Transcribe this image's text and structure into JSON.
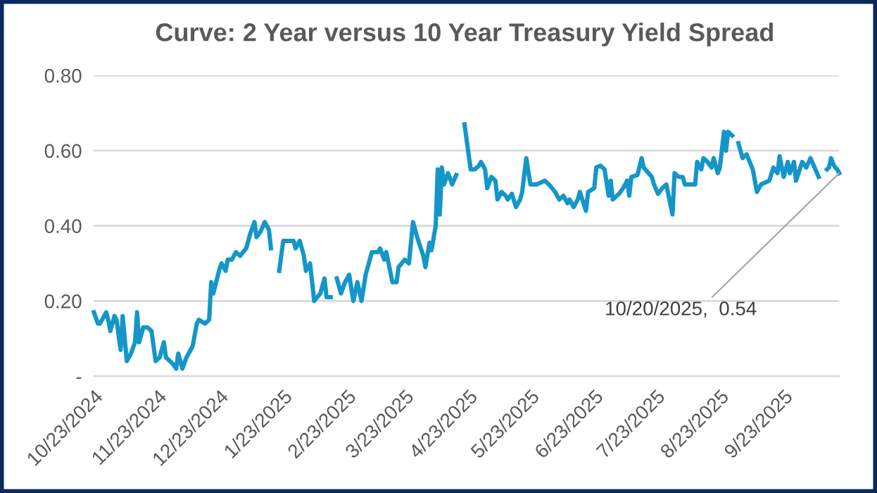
{
  "chart_data": {
    "type": "line",
    "title": "Curve: 2 Year versus 10 Year Treasury Yield Spread",
    "series": [
      {
        "color": "#1596c8",
        "x": [
          "2024-10-23",
          "2024-10-25",
          "2024-10-26",
          "2024-10-29",
          "2024-10-30",
          "2024-10-31",
          "2024-11-02",
          "2024-11-03",
          "2024-11-05",
          "2024-11-06",
          "2024-11-08",
          "2024-11-10",
          "2024-11-12",
          "2024-11-13",
          "2024-11-14",
          "2024-11-16",
          "2024-11-18",
          "2024-11-20",
          "2024-11-22",
          "2024-11-24",
          "2024-11-26",
          "2024-11-27",
          "2024-11-30",
          "2024-12-02",
          "2024-12-03",
          "2024-12-05",
          "2024-12-07",
          "2024-12-09",
          "2024-12-10",
          "2024-12-12",
          "2024-12-13",
          "2024-12-16",
          "2024-12-18",
          "2024-12-19",
          "2024-12-20",
          "2024-12-23",
          "2024-12-24",
          "2024-12-26",
          "2024-12-27",
          "2024-12-29",
          "2024-12-31",
          "2025-01-02",
          "2025-01-05",
          "2025-01-07",
          "2025-01-09",
          "2025-01-10",
          "2025-01-12",
          "2025-01-14",
          "2025-01-16",
          "2025-01-17",
          "2025-01-19",
          "2025-01-21",
          "2025-01-23",
          "2025-01-28",
          "2025-01-29",
          "2025-01-31",
          "2025-02-02",
          "2025-02-03",
          "2025-02-05",
          "2025-02-07",
          "2025-02-10",
          "2025-02-12",
          "2025-02-13",
          "2025-02-15",
          "2025-02-17",
          "2025-02-18",
          "2025-02-20",
          "2025-02-22",
          "2025-02-24",
          "2025-02-26",
          "2025-02-28",
          "2025-03-02",
          "2025-03-04",
          "2025-03-07",
          "2025-03-10",
          "2025-03-11",
          "2025-03-13",
          "2025-03-14",
          "2025-03-17",
          "2025-03-19",
          "2025-03-20",
          "2025-03-23",
          "2025-03-25",
          "2025-03-27",
          "2025-03-29",
          "2025-04-01",
          "2025-04-02",
          "2025-04-04",
          "2025-04-05",
          "2025-04-07",
          "2025-04-08",
          "2025-04-09",
          "2025-04-10",
          "2025-04-11",
          "2025-04-13",
          "2025-04-15",
          "2025-04-17",
          "2025-04-19",
          "2025-04-21",
          "2025-04-24",
          "2025-04-26",
          "2025-04-28",
          "2025-04-29",
          "2025-05-01",
          "2025-05-02",
          "2025-05-04",
          "2025-05-06",
          "2025-05-07",
          "2025-05-09",
          "2025-05-11",
          "2025-05-12",
          "2025-05-14",
          "2025-05-16",
          "2025-05-18",
          "2025-05-19",
          "2025-05-21",
          "2025-05-23",
          "2025-05-26",
          "2025-05-30",
          "2025-06-01",
          "2025-06-04",
          "2025-06-06",
          "2025-06-08",
          "2025-06-10",
          "2025-06-11",
          "2025-06-13",
          "2025-06-15",
          "2025-06-16",
          "2025-06-19",
          "2025-06-20",
          "2025-06-23",
          "2025-06-24",
          "2025-06-26",
          "2025-06-28",
          "2025-06-30",
          "2025-07-01",
          "2025-07-02",
          "2025-07-05",
          "2025-07-07",
          "2025-07-09",
          "2025-07-10",
          "2025-07-11",
          "2025-07-14",
          "2025-07-16",
          "2025-07-17",
          "2025-07-21",
          "2025-07-22",
          "2025-07-24",
          "2025-07-26",
          "2025-07-28",
          "2025-07-31",
          "2025-08-01",
          "2025-08-03",
          "2025-08-05",
          "2025-08-06",
          "2025-08-09",
          "2025-08-11",
          "2025-08-12",
          "2025-08-14",
          "2025-08-15",
          "2025-08-17",
          "2025-08-19",
          "2025-08-20",
          "2025-08-22",
          "2025-08-23",
          "2025-08-25",
          "2025-08-26",
          "2025-08-27",
          "2025-08-29",
          "2025-08-31",
          "2025-09-01",
          "2025-09-03",
          "2025-09-05",
          "2025-09-08",
          "2025-09-10",
          "2025-09-12",
          "2025-09-16",
          "2025-09-18",
          "2025-09-20",
          "2025-09-21",
          "2025-09-23",
          "2025-09-25",
          "2025-09-26",
          "2025-09-28",
          "2025-09-29",
          "2025-10-02",
          "2025-10-04",
          "2025-10-06",
          "2025-10-10",
          "2025-10-11",
          "2025-10-14",
          "2025-10-15",
          "2025-10-16",
          "2025-10-17",
          "2025-10-18",
          "2025-10-19",
          "2025-10-20"
        ],
        "values": [
          0.17,
          0.14,
          0.14,
          0.17,
          0.15,
          0.12,
          0.16,
          0.15,
          0.07,
          0.16,
          0.04,
          0.06,
          0.09,
          0.17,
          0.09,
          0.13,
          0.13,
          0.12,
          0.04,
          0.05,
          0.09,
          0.05,
          0.035,
          0.02,
          0.06,
          0.02,
          0.05,
          0.07,
          0.08,
          0.14,
          0.15,
          0.14,
          0.15,
          0.25,
          0.22,
          0.285,
          0.3,
          0.28,
          0.31,
          0.31,
          0.33,
          0.32,
          0.34,
          0.38,
          0.41,
          0.37,
          0.385,
          0.41,
          0.39,
          0.34,
          null,
          0.28,
          0.36,
          0.36,
          0.34,
          0.36,
          0.32,
          0.28,
          0.3,
          0.2,
          0.22,
          0.26,
          0.21,
          0.21,
          null,
          0.26,
          0.22,
          0.25,
          0.27,
          0.2,
          0.25,
          0.2,
          0.27,
          0.33,
          0.33,
          0.34,
          0.31,
          0.33,
          0.25,
          0.25,
          0.29,
          0.31,
          0.3,
          0.41,
          0.37,
          0.32,
          0.29,
          0.355,
          0.335,
          0.4,
          0.55,
          0.43,
          0.555,
          0.51,
          0.54,
          0.51,
          0.535,
          null,
          0.67,
          0.55,
          0.55,
          0.56,
          0.57,
          0.55,
          0.5,
          0.53,
          0.52,
          0.47,
          0.49,
          0.48,
          0.47,
          0.485,
          0.45,
          0.47,
          0.49,
          0.58,
          0.51,
          0.51,
          0.52,
          0.51,
          0.49,
          0.47,
          0.48,
          0.46,
          0.47,
          0.45,
          0.47,
          0.49,
          0.44,
          0.49,
          0.5,
          0.555,
          0.56,
          0.55,
          0.48,
          0.52,
          0.47,
          0.485,
          0.5,
          0.52,
          0.48,
          0.53,
          0.535,
          0.58,
          0.555,
          0.53,
          0.51,
          0.485,
          0.5,
          0.51,
          0.43,
          0.54,
          0.53,
          0.53,
          0.51,
          0.51,
          0.51,
          0.57,
          0.55,
          0.58,
          0.57,
          0.555,
          0.58,
          0.54,
          0.555,
          0.65,
          0.6,
          0.65,
          0.64,
          null,
          0.62,
          0.58,
          0.59,
          0.55,
          0.49,
          0.51,
          0.52,
          0.555,
          0.54,
          0.585,
          0.53,
          0.57,
          0.54,
          0.57,
          0.52,
          0.57,
          0.555,
          0.58,
          0.53,
          null,
          0.55,
          0.555,
          0.58,
          0.565,
          0.555,
          0.55,
          0.54
        ]
      }
    ],
    "xlim": [
      "2024-10-23",
      "2025-10-20"
    ],
    "xticks": [
      {
        "value": "2024-10-23",
        "label": "10/23/2024"
      },
      {
        "value": "2024-11-23",
        "label": "11/23/2024"
      },
      {
        "value": "2024-12-23",
        "label": "12/23/2024"
      },
      {
        "value": "2025-01-23",
        "label": "1/23/2025"
      },
      {
        "value": "2025-02-23",
        "label": "2/23/2025"
      },
      {
        "value": "2025-03-23",
        "label": "3/23/2025"
      },
      {
        "value": "2025-04-23",
        "label": "4/23/2025"
      },
      {
        "value": "2025-05-23",
        "label": "5/23/2025"
      },
      {
        "value": "2025-06-23",
        "label": "6/23/2025"
      },
      {
        "value": "2025-07-23",
        "label": "7/23/2025"
      },
      {
        "value": "2025-08-23",
        "label": "8/23/2025"
      },
      {
        "value": "2025-09-23",
        "label": "9/23/2025"
      }
    ],
    "ylim": [
      0,
      0.8
    ],
    "yticks": [
      {
        "value": 0,
        "label": "-"
      },
      {
        "value": 0.2,
        "label": "0.20"
      },
      {
        "value": 0.4,
        "label": "0.40"
      },
      {
        "value": 0.6,
        "label": "0.60"
      },
      {
        "value": 0.8,
        "label": "0.80"
      }
    ],
    "grid": "y",
    "marker": "none",
    "line_style": "solid",
    "annotations": [
      {
        "text": "10/20/2025,  0.54",
        "x": "2025-10-20",
        "y": 0.54
      }
    ]
  }
}
